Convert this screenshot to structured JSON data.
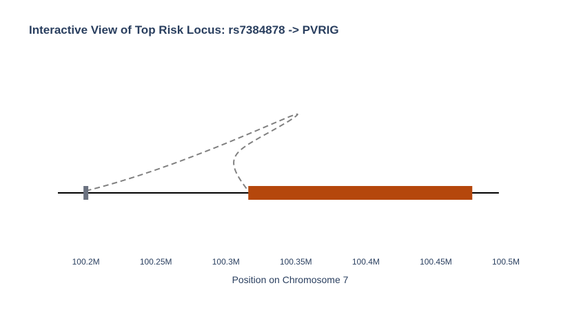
{
  "chart_data": {
    "type": "locus",
    "title": "Interactive View of Top Risk Locus: rs7384878 -> PVRIG",
    "xlabel": "Position on Chromosome 7",
    "ylabel": "",
    "xlim": [
      100180000,
      100500000
    ],
    "x_ticks": [
      100200000,
      100250000,
      100300000,
      100350000,
      100400000,
      100450000,
      100500000
    ],
    "x_tick_labels": [
      "100.2M",
      "100.25M",
      "100.3M",
      "100.35M",
      "100.4M",
      "100.45M",
      "100.5M"
    ],
    "chromosome_line": {
      "start": 100180000,
      "end": 100495000
    },
    "snp": {
      "position": 100200000,
      "label": "rs7384878",
      "color": "#6b7280"
    },
    "gene": {
      "name": "PVRIG",
      "start": 100316000,
      "end": 100476000,
      "color": "#b5470c"
    },
    "link": {
      "from": 100200000,
      "to": 100316000,
      "style": "dashed",
      "color": "#808080"
    },
    "grid": false,
    "colors": {
      "title": "#2a3f5f",
      "axis_text": "#2a3f5f",
      "chromosome_line": "#000000"
    }
  }
}
